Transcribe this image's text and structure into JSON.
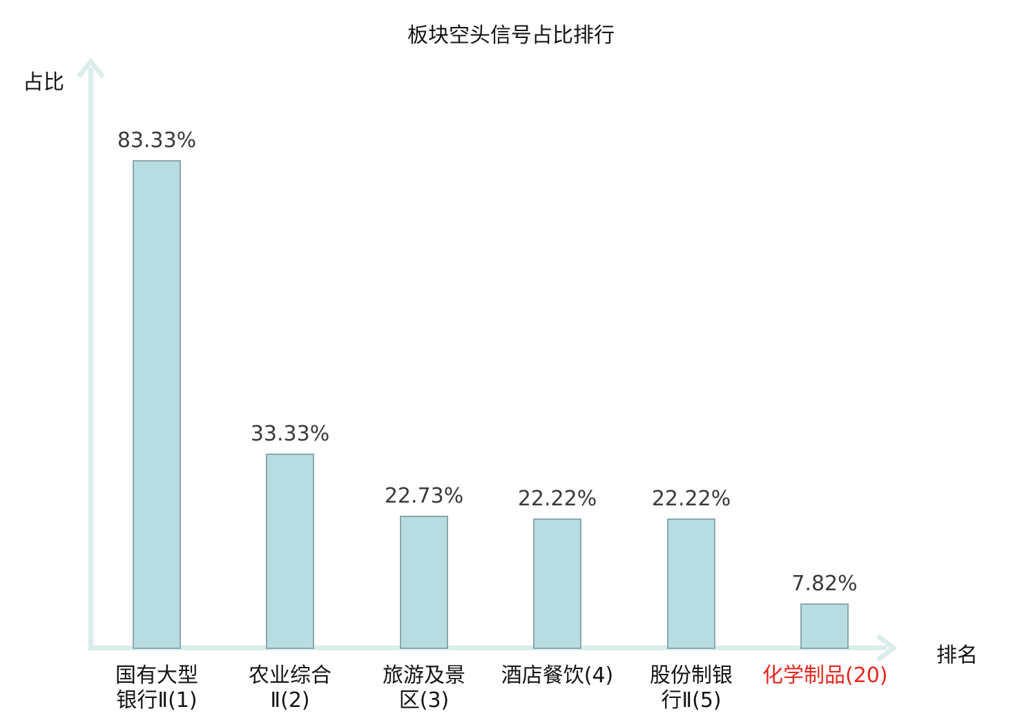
{
  "title": "板块空头信号占比排行",
  "axes": {
    "y_label": "占比",
    "x_label": "排名"
  },
  "colors": {
    "bar_fill": "#b7dde2",
    "bar_border": "#8ba6ab",
    "axis": "#daedea",
    "value_text": "#3a3a3a",
    "label_text": "#141414",
    "highlight": "#e5261d"
  },
  "chart_data": {
    "type": "bar",
    "title": "板块空头信号占比排行",
    "xlabel": "排名",
    "ylabel": "占比",
    "ylim": [
      0,
      100
    ],
    "grid": false,
    "legend": null,
    "categories": [
      "国有大型银行Ⅱ(1)",
      "农业综合Ⅱ(2)",
      "旅游及景区(3)",
      "酒店餐饮(4)",
      "股份制银行Ⅱ(5)",
      "化学制品(20)"
    ],
    "values": [
      83.33,
      33.33,
      22.73,
      22.22,
      22.22,
      7.82
    ],
    "bars": [
      {
        "value": 83.33,
        "value_label": "83.33%",
        "label_line1": "国有大型",
        "label_line2": "银行Ⅱ(1)",
        "highlight": false
      },
      {
        "value": 33.33,
        "value_label": "33.33%",
        "label_line1": "农业综合",
        "label_line2": "Ⅱ(2)",
        "highlight": false
      },
      {
        "value": 22.73,
        "value_label": "22.73%",
        "label_line1": "旅游及景",
        "label_line2": "区(3)",
        "highlight": false
      },
      {
        "value": 22.22,
        "value_label": "22.22%",
        "label_line1": "酒店餐饮(4)",
        "label_line2": "",
        "highlight": false
      },
      {
        "value": 22.22,
        "value_label": "22.22%",
        "label_line1": "股份制银",
        "label_line2": "行Ⅱ(5)",
        "highlight": false
      },
      {
        "value": 7.82,
        "value_label": "7.82%",
        "label_line1": "化学制品(20)",
        "label_line2": "",
        "highlight": true
      }
    ]
  }
}
